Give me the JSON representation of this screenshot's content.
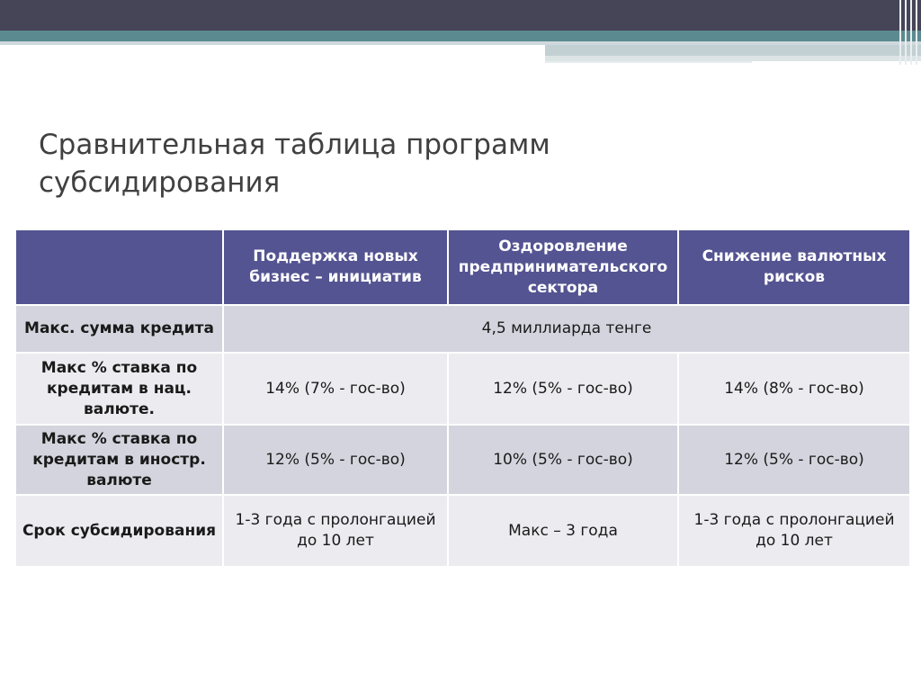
{
  "title": "Сравнительная таблица программ субсидирования",
  "table": {
    "headers": [
      "",
      "Поддержка новых бизнес – инициатив",
      "Оздоровление предпринимательского сектора",
      "Снижение валютных рисков"
    ],
    "rows": [
      {
        "label": "Макс. сумма кредита",
        "merged": "4,5 миллиарда тенге"
      },
      {
        "label": "Макс % ставка по кредитам в нац. валюте.",
        "cells": [
          "14% (7% - гос-во)",
          "12% (5% - гос-во)",
          "14% (8% - гос-во)"
        ]
      },
      {
        "label": "Макс % ставка по кредитам в иностр. валюте",
        "cells": [
          "12% (5% - гос-во)",
          "10% (5% - гос-во)",
          "12% (5% - гос-во)"
        ]
      },
      {
        "label": "Срок субсидирования",
        "cells": [
          "1-3 года с пролонгацией до 10 лет",
          "Макс – 3 года",
          "1-3 года с пролонгацией до 10 лет"
        ]
      }
    ]
  },
  "colors": {
    "header_bg": "#545492",
    "row_odd_bg": "#d4d4de",
    "row_even_bg": "#ebebf0",
    "top_bar_dark": "#454557",
    "top_bar_teal": "#5b8b90"
  }
}
